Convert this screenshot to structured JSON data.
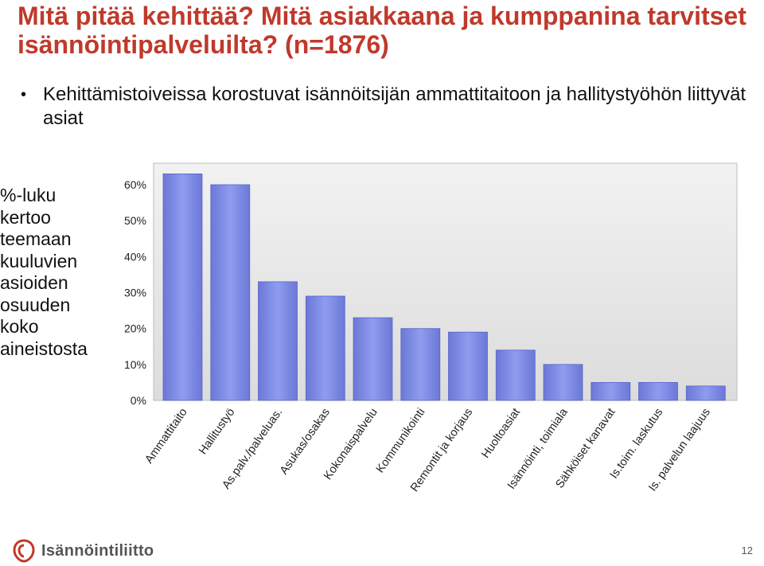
{
  "slide": {
    "title": "Mitä pitää kehittää? Mitä asiakkaana ja kumppanina tarvitset isännöintipalveluilta? (n=1876)",
    "bullet": "Kehittämistoiveissa korostuvat isännöitsijän ammattitaitoon ja hallitystyöhön liittyvät asiat",
    "side_note": "%-luku kertoo teemaan kuuluvien asioiden osuuden koko aineistosta",
    "logo_text": "Isännöintiliitto",
    "page_number": "12"
  },
  "colors": {
    "title": "#c0392b",
    "bar": "#7f8fe0",
    "bar_dark": "#5a66c8",
    "plot_bg": "#e4e4e4",
    "logo_accent": "#c0392b"
  },
  "icons": {
    "logo": "isannointiliitto-logo-icon"
  },
  "chart_data": {
    "type": "bar",
    "categories": [
      "Ammattitaito",
      "Hallitustyö",
      "As.palv./palveluas.",
      "Asukas/osakas",
      "Kokonaispalvelu",
      "Kommunikointi",
      "Remontit ja korjaus",
      "Huoltoasiat",
      "Isännöinti, toimiala",
      "Sähköiset kanavat",
      "Is.toim. laskutus",
      "Is. palvelun laajuus"
    ],
    "values": [
      63,
      60,
      33,
      29,
      23,
      20,
      19,
      14,
      10,
      5,
      5,
      4
    ],
    "ylim": [
      0,
      60
    ],
    "yticks": [
      "0%",
      "10%",
      "20%",
      "30%",
      "40%",
      "50%",
      "60%"
    ],
    "grid": false,
    "legend": "none"
  }
}
